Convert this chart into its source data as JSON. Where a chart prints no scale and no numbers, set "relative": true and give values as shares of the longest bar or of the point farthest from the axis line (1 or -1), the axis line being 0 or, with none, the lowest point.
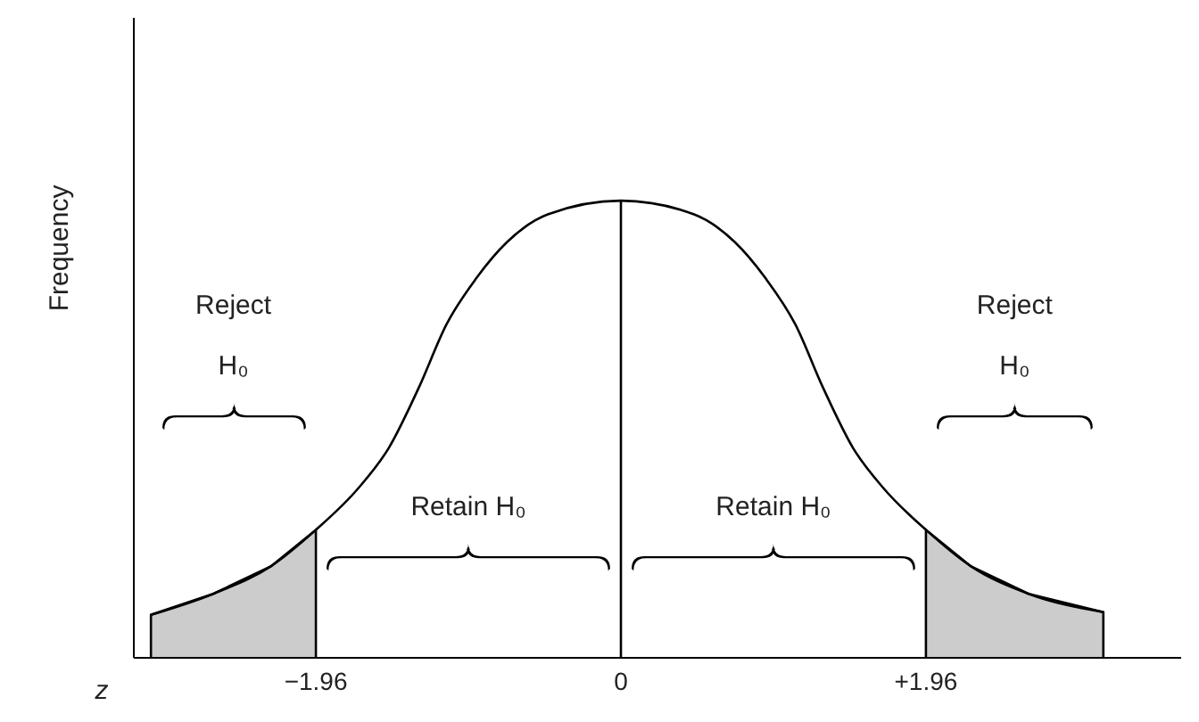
{
  "chart_data": {
    "type": "line",
    "relative": true,
    "xlabel": "z",
    "ylabel": "Frequency",
    "xlim": [
      -3.13,
      3.6
    ],
    "xticks": [
      {
        "value": -1.96,
        "label": "−1.96"
      },
      0,
      {
        "value": 1.96,
        "label": "+1.96"
      }
    ],
    "series": [
      {
        "type": "area",
        "color": "#cccccc",
        "x": [
          -3.02,
          -3.02,
          -2.62,
          -2.25,
          -1.96,
          -1.96
        ],
        "values": [
          0,
          0.094,
          0.14,
          0.2,
          0.28,
          0
        ]
      },
      {
        "type": "area",
        "color": "#cccccc",
        "x": [
          1.96,
          1.96,
          2.25,
          2.62,
          3.1,
          3.1
        ],
        "values": [
          0,
          0.28,
          0.2,
          0.14,
          0.1,
          0
        ]
      },
      {
        "color": "#000000",
        "x": [
          -3.02,
          -2.62,
          -2.25,
          -1.96,
          -1.69,
          -1.49,
          -1.3,
          -1.12,
          -0.93,
          -0.73,
          -0.47,
          0,
          0.47,
          0.73,
          0.93,
          1.12,
          1.3,
          1.49,
          1.69,
          1.96,
          2.25,
          2.62,
          3.1
        ],
        "values": [
          0.094,
          0.14,
          0.2,
          0.28,
          0.37,
          0.46,
          0.59,
          0.73,
          0.83,
          0.91,
          0.97,
          1,
          0.97,
          0.91,
          0.83,
          0.73,
          0.59,
          0.46,
          0.37,
          0.28,
          0.2,
          0.14,
          0.1
        ]
      }
    ],
    "ref_lines": [
      {
        "axis": "x",
        "value": 0,
        "color": "#000000"
      }
    ],
    "annotations": [
      "Reject\nH₀",
      "Retain H₀",
      "Retain H₀",
      "Reject\nH₀"
    ]
  }
}
